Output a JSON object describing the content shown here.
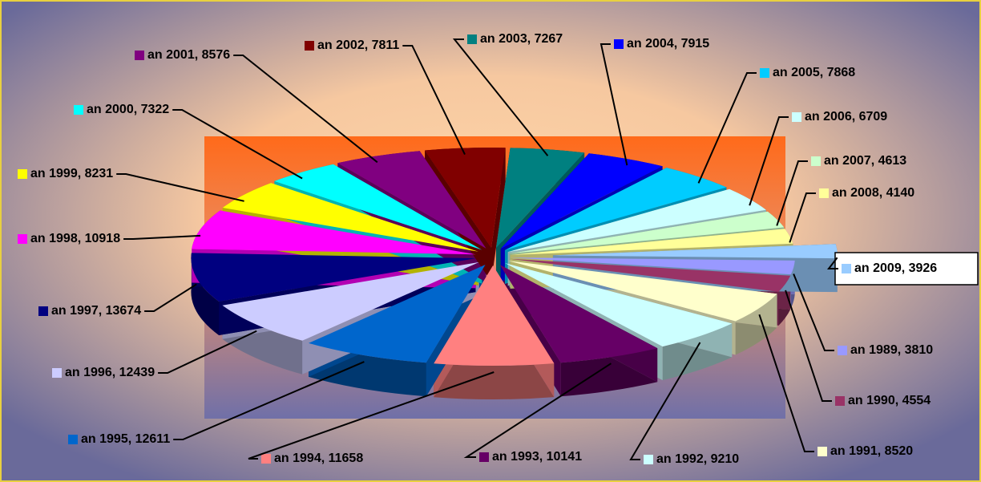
{
  "chart_data": {
    "type": "pie",
    "values": [
      3810,
      4554,
      8520,
      9210,
      10141,
      11658,
      12611,
      12439,
      13674,
      10918,
      8231,
      7322,
      8576,
      7811,
      7267,
      7915,
      7868,
      6709,
      4613,
      4140,
      3926
    ],
    "value_labels": [
      "an 1989, 3810",
      "an 1990, 4554",
      "an 1991, 8520",
      "an 1992, 9210",
      "an 1993, 10141",
      "an 1994, 11658",
      "an 1995, 12611",
      "an 1996, 12439",
      "an 1997, 13674",
      "an 1998, 10918",
      "an 1999, 8231",
      "an 2000, 7322",
      "an 2001, 8576",
      "an 2002, 7811",
      "an 2003, 7267",
      "an 2004, 7915",
      "an 2005, 7868",
      "an 2006, 6709",
      "an 2007, 4613",
      "an 2008, 4140",
      "an 2009, 3926"
    ],
    "colors": [
      "#9999ff",
      "#993366",
      "#ffffcc",
      "#ccffff",
      "#660066",
      "#ff8080",
      "#0066cc",
      "#ccccff",
      "#000080",
      "#ff00ff",
      "#ffff00",
      "#00ffff",
      "#800080",
      "#800000",
      "#008080",
      "#0000ff",
      "#00ccff",
      "#ccffff",
      "#ccffcc",
      "#ffff99",
      "#99ccff"
    ]
  }
}
